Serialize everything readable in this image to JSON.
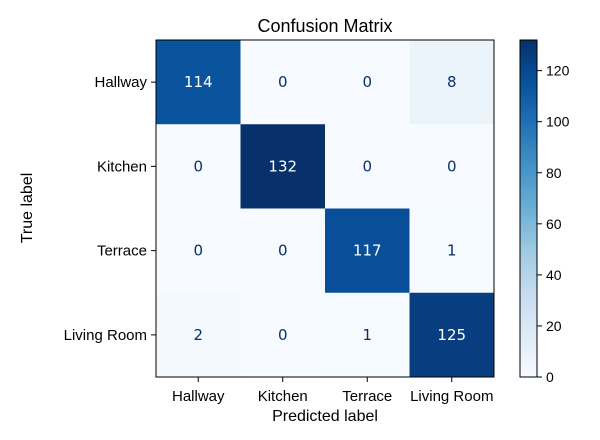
{
  "chart_data": {
    "type": "heatmap",
    "title": "Confusion Matrix",
    "xlabel": "Predicted label",
    "ylabel": "True label",
    "x_categories": [
      "Hallway",
      "Kitchen",
      "Terrace",
      "Living Room"
    ],
    "y_categories": [
      "Hallway",
      "Kitchen",
      "Terrace",
      "Living Room"
    ],
    "matrix": [
      [
        114,
        0,
        0,
        8
      ],
      [
        0,
        132,
        0,
        0
      ],
      [
        0,
        0,
        117,
        1
      ],
      [
        2,
        0,
        1,
        125
      ]
    ],
    "cell_labels": [
      [
        "114",
        "0",
        "0",
        "8"
      ],
      [
        "0",
        "132",
        "0",
        "0"
      ],
      [
        "0",
        "0",
        "117",
        "1"
      ],
      [
        "2",
        "0",
        "1",
        "125"
      ]
    ],
    "colorbar": {
      "colormap": "Blues",
      "range": [
        0,
        132
      ],
      "ticks": [
        0,
        20,
        40,
        60,
        80,
        100,
        120
      ],
      "tick_labels": [
        "0",
        "20",
        "40",
        "60",
        "80",
        "100",
        "120"
      ]
    },
    "grid": false
  }
}
